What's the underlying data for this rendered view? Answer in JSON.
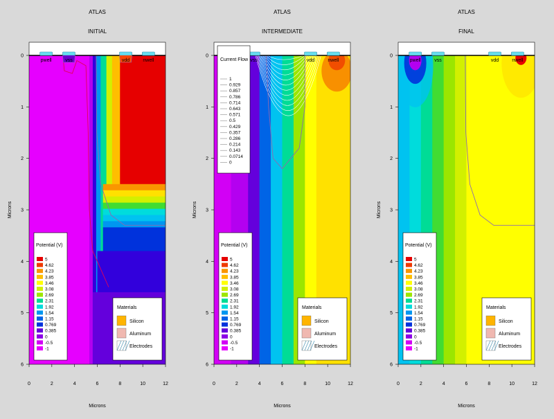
{
  "chart_data": [
    {
      "type": "heatmap",
      "software": "ATLAS",
      "title": "INITIAL",
      "xlabel": "Microns",
      "ylabel": "Microns",
      "xlim": [
        0,
        12
      ],
      "ylim": [
        6,
        0
      ],
      "xticks": [
        "0",
        "2",
        "4",
        "6",
        "8",
        "10",
        "12"
      ],
      "yticks": [
        "0",
        "1",
        "2",
        "3",
        "4",
        "5",
        "6"
      ],
      "electrodes": [
        "pwell",
        "vss",
        "vdd",
        "nwell"
      ],
      "zones": [
        {
          "x0": 0,
          "x1": 5.3,
          "level": 0
        },
        {
          "x0": 5.3,
          "x1": 5.6,
          "level": 2
        },
        {
          "x0": 5.6,
          "x1": 5.9,
          "level": 5
        },
        {
          "x0": 5.9,
          "x1": 6.3,
          "level": 8
        },
        {
          "x0": 6.3,
          "x1": 6.8,
          "level": 11
        },
        {
          "x0": 6.8,
          "x1": 7.3,
          "level": 14
        },
        {
          "x0": 7.3,
          "x1": 8.0,
          "level": 17
        },
        {
          "x0": 8.0,
          "x1": 12,
          "level": 19
        }
      ],
      "junction": [
        [
          3.0,
          0.05
        ],
        [
          3.1,
          0.3
        ],
        [
          3.8,
          0.35
        ],
        [
          4.2,
          0.1
        ],
        [
          5.0,
          0.2
        ],
        [
          5.2,
          1.5
        ],
        [
          5.3,
          3.0
        ],
        [
          5.6,
          3.8
        ],
        [
          6.4,
          4.2
        ],
        [
          7.0,
          4.5
        ]
      ],
      "junction_color": "#e0005a",
      "well_boundary": [
        [
          5.9,
          0.0
        ],
        [
          5.95,
          1.5
        ],
        [
          6.3,
          2.5
        ],
        [
          7.2,
          3.1
        ],
        [
          8.4,
          3.3
        ],
        [
          12,
          3.3
        ]
      ]
    },
    {
      "type": "heatmap",
      "software": "ATLAS",
      "title": "INTERMEDIATE",
      "xlabel": "Microns",
      "ylabel": "Microns",
      "xlim": [
        0,
        12
      ],
      "ylim": [
        6,
        0
      ],
      "xticks": [
        "0",
        "2",
        "4",
        "6",
        "8",
        "10",
        "12"
      ],
      "yticks": [
        "0",
        "1",
        "2",
        "3",
        "4",
        "5",
        "6"
      ],
      "electrodes": [
        "pwell",
        "vss",
        "vdd",
        "nwell"
      ],
      "zones": [
        {
          "x0": 0,
          "x1": 1.5,
          "level": 1
        },
        {
          "x0": 1.5,
          "x1": 3.0,
          "level": 2
        },
        {
          "x0": 3.0,
          "x1": 4.0,
          "level": 4
        },
        {
          "x0": 4.0,
          "x1": 5.0,
          "level": 7
        },
        {
          "x0": 5.0,
          "x1": 6.0,
          "level": 9
        },
        {
          "x0": 6.0,
          "x1": 7.0,
          "level": 11
        },
        {
          "x0": 7.0,
          "x1": 8.0,
          "level": 13
        },
        {
          "x0": 8.0,
          "x1": 9.0,
          "level": 15
        },
        {
          "x0": 9.0,
          "x1": 12,
          "level": 16
        }
      ],
      "current_flow_legend": {
        "title": "Current Flow",
        "levels": [
          "1",
          "0.929",
          "0.857",
          "0.786",
          "0.714",
          "0.643",
          "0.571",
          "0.5",
          "0.429",
          "0.357",
          "0.286",
          "0.214",
          "0.143",
          "0.0714",
          "0"
        ]
      },
      "well_boundary": [
        [
          8.0,
          0.0
        ],
        [
          8.0,
          1.0
        ],
        [
          7.5,
          1.8
        ],
        [
          6.0,
          2.2
        ],
        [
          5.2,
          2.0
        ],
        [
          4.8,
          1.0
        ],
        [
          4.6,
          0.0
        ]
      ]
    },
    {
      "type": "heatmap",
      "software": "ATLAS",
      "title": "FINAL",
      "xlabel": "Microns",
      "ylabel": "Microns",
      "xlim": [
        0,
        12
      ],
      "ylim": [
        6,
        0
      ],
      "xticks": [
        "0",
        "2",
        "4",
        "6",
        "8",
        "10",
        "12"
      ],
      "yticks": [
        "0",
        "1",
        "2",
        "3",
        "4",
        "5",
        "6"
      ],
      "electrodes": [
        "pwell",
        "vss",
        "vdd",
        "nwell"
      ],
      "zones": [
        {
          "x0": 0,
          "x1": 1.0,
          "level": 9
        },
        {
          "x0": 1.0,
          "x1": 2.0,
          "level": 10
        },
        {
          "x0": 2.0,
          "x1": 3.0,
          "level": 11
        },
        {
          "x0": 3.0,
          "x1": 4.0,
          "level": 12
        },
        {
          "x0": 4.0,
          "x1": 5.0,
          "level": 13
        },
        {
          "x0": 5.0,
          "x1": 6.0,
          "level": 14
        },
        {
          "x0": 6.0,
          "x1": 12,
          "level": 15
        }
      ],
      "well_boundary": [
        [
          5.9,
          0.0
        ],
        [
          5.95,
          1.5
        ],
        [
          6.3,
          2.5
        ],
        [
          7.2,
          3.1
        ],
        [
          8.4,
          3.3
        ],
        [
          12,
          3.3
        ]
      ]
    }
  ],
  "potential_legend": {
    "title": "Potential (V)",
    "labels": [
      "5",
      "4.62",
      "4.23",
      "3.85",
      "3.46",
      "3.08",
      "2.69",
      "2.31",
      "1.92",
      "1.54",
      "1.15",
      "0.769",
      "0.385",
      "0",
      "-0.5",
      "-1"
    ],
    "colors": [
      "#e60000",
      "#ee3a00",
      "#f56e00",
      "#fa9600",
      "#ffbe00",
      "#ffe100",
      "#ffff00",
      "#d2f000",
      "#9be600",
      "#41dc32",
      "#00dc96",
      "#00dcdc",
      "#00c3f0",
      "#0096f0",
      "#0064e6",
      "#0032dc",
      "#3200dc",
      "#6400dc",
      "#8c00e6",
      "#b400f0",
      "#d200f5",
      "#e600ff"
    ]
  },
  "materials_legend": {
    "title": "Materials",
    "items": [
      {
        "label": "Silicon",
        "color": "#ffb400"
      },
      {
        "label": "Aluminum",
        "color": "#f0b8b0"
      },
      {
        "label": "Electrodes",
        "color": "#ffffff"
      }
    ]
  },
  "colors": {
    "background": "#d9d9d9",
    "electrode_fill": "#66ddee",
    "current_line": "#ffffff",
    "boundary": "#8b6bb0"
  }
}
